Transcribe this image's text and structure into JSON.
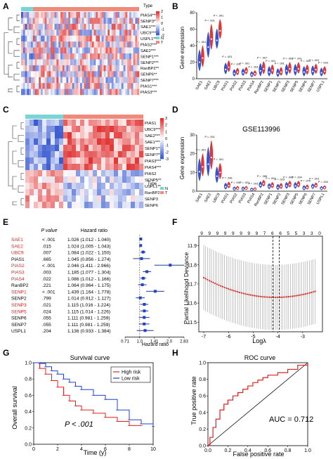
{
  "panels": {
    "A": {
      "letter": "A",
      "legend_title": "Type",
      "genes": [
        "PIAS4****",
        "SENP3***",
        "SAE1***",
        "UBC9***",
        "USPL1**",
        "PIAS2***",
        "SAE2***",
        "SENP1***",
        "SENP2***",
        "RanBP2**",
        "SENP6**",
        "SENP7***",
        "PIAS1***",
        "PIAS3***"
      ],
      "type_labels": [
        "N",
        "T"
      ],
      "scale": [
        "2",
        "1",
        "0",
        "-1",
        "-2"
      ]
    },
    "B": {
      "letter": "B",
      "ylabel": "Gene expression",
      "ylim": [
        0,
        80
      ],
      "yticks": [
        "0",
        "20",
        "40",
        "60",
        "80"
      ],
      "genes": [
        "SAE1",
        "SAE2",
        "UBC9",
        "PIAS1",
        "PIAS2",
        "PIAS3",
        "PIAS4",
        "RanBP2",
        "SENP1",
        "SENP2",
        "SENP3",
        "SENP5",
        "SENP6",
        "SENP7",
        "USPL1"
      ],
      "pvals": [
        "P = .001",
        "P < .001",
        "P < .001",
        "P = .001",
        "P < .001",
        "P = .001",
        "P < .001",
        "P = .007",
        "P < .001",
        "P = .001",
        "P < .001",
        "P = .001",
        "P = .001",
        "P < .001",
        "P = .003"
      ]
    },
    "C": {
      "letter": "C",
      "legend_title": "Type",
      "genes": [
        "PIAS1",
        "UBC9***",
        "SAE2***",
        "SAE1***",
        "SENP1***",
        "SENP7***",
        "PIAS3***",
        "PIAS4***",
        "PIAS2",
        "SENP5**",
        "USPL1**",
        "RanBP2",
        "SENP3",
        "SENP6"
      ],
      "type_labels": [
        "N",
        "T"
      ],
      "scale": [
        "3",
        "2",
        "1",
        "0",
        "-1",
        "-2",
        "-3"
      ]
    },
    "D": {
      "letter": "D",
      "title": "GSE113996",
      "ylabel": "Gene expression",
      "ylim": [
        0,
        30
      ],
      "yticks": [
        "0",
        "10",
        "20",
        "30"
      ],
      "genes": [
        "SAE1",
        "SAE2",
        "UBC9",
        "PIAS1",
        "PIAS2",
        "PIAS3",
        "PIAS4",
        "RanBP2",
        "SENP1",
        "SENP2",
        "SENP3",
        "SENP5",
        "SENP6",
        "SENP7",
        "USPL1"
      ],
      "pvals": [
        "P < .001",
        "P < .001",
        "P < .001",
        "P = .296",
        "P = .001",
        "P = .021",
        "P = .001",
        "P = .285",
        "P < .001",
        "P = .023",
        "P = .005",
        "P = .004",
        "P = .076",
        "P = .001",
        "P = .004"
      ]
    },
    "E": {
      "letter": "E",
      "col_pvalue": "P value",
      "col_hr": "Hazard ratio",
      "xlabel": "Hazard ratio",
      "xticks": [
        "0.71",
        "1.0",
        "1.41",
        "2.0",
        "2.83"
      ],
      "rows": [
        {
          "gene": "SAE1",
          "p": "< .001",
          "hr": "1.026 (1.012 - 1.040)",
          "est": 1.026,
          "lo": 1.012,
          "hi": 1.04,
          "sig": true
        },
        {
          "gene": "SAE2",
          "p": ".015",
          "hr": "1.024 (1.005 - 1.043)",
          "est": 1.024,
          "lo": 1.005,
          "hi": 1.043,
          "sig": true
        },
        {
          "gene": "UBC9",
          "p": ".007",
          "hr": "1.084 (1.022 - 1.150)",
          "est": 1.084,
          "lo": 1.022,
          "hi": 1.15,
          "sig": true
        },
        {
          "gene": "PIAS1",
          "p": ".665",
          "hr": "1.045 (0.856 - 1.274)",
          "est": 1.045,
          "lo": 0.856,
          "hi": 1.274,
          "sig": false
        },
        {
          "gene": "PIAS2",
          "p": "< .001",
          "hr": "2.046 (1.411 - 2.966)",
          "est": 2.046,
          "lo": 1.411,
          "hi": 2.966,
          "sig": true
        },
        {
          "gene": "PIAS3",
          "p": ".003",
          "hr": "1.185 (1.077 - 1.304)",
          "est": 1.185,
          "lo": 1.077,
          "hi": 1.304,
          "sig": true
        },
        {
          "gene": "PIAS4",
          "p": ".022",
          "hr": "1.086 (1.012 - 1.166)",
          "est": 1.086,
          "lo": 1.012,
          "hi": 1.166,
          "sig": true
        },
        {
          "gene": "RanBP2",
          "p": ".221",
          "hr": "1.064 (0.964 - 1.175)",
          "est": 1.064,
          "lo": 0.964,
          "hi": 1.175,
          "sig": false
        },
        {
          "gene": "SENP1",
          "p": "< .001",
          "hr": "1.439 (1.164 - 1.778)",
          "est": 1.439,
          "lo": 1.164,
          "hi": 1.778,
          "sig": true
        },
        {
          "gene": "SENP2",
          "p": ".799",
          "hr": "1.014 (0.912 - 1.127)",
          "est": 1.014,
          "lo": 0.912,
          "hi": 1.127,
          "sig": false
        },
        {
          "gene": "SENP3",
          "p": ".021",
          "hr": "1.115 (1.016 - 1.224)",
          "est": 1.115,
          "lo": 1.016,
          "hi": 1.224,
          "sig": true
        },
        {
          "gene": "SENP5",
          "p": ".024",
          "hr": "1.115 (1.014 - 1.226)",
          "est": 1.115,
          "lo": 1.014,
          "hi": 1.226,
          "sig": true
        },
        {
          "gene": "SENP6",
          "p": ".055",
          "hr": "1.111 (0.981 - 1.259)",
          "est": 1.111,
          "lo": 0.981,
          "hi": 1.259,
          "sig": false
        },
        {
          "gene": "SENP7",
          "p": ".055",
          "hr": "1.111 (0.981 - 1.259)",
          "est": 1.111,
          "lo": 0.981,
          "hi": 1.259,
          "sig": false
        },
        {
          "gene": "USPL1",
          "p": ".204",
          "hr": "1.136 (0.933 - 1.384)",
          "est": 1.136,
          "lo": 0.933,
          "hi": 1.384,
          "sig": false
        }
      ]
    },
    "F": {
      "letter": "F",
      "ylabel": "Partial Likelihood Deviance",
      "xlabel": "Logλ",
      "yticks": [
        "11.5",
        "11.6",
        "11.7",
        "11.8",
        "11.9"
      ],
      "xticks": [
        "-7",
        "-6",
        "-5",
        "-4",
        "-3"
      ],
      "top_counts": [
        "9",
        "9",
        "9",
        "9",
        "9",
        "9",
        "9",
        "9",
        "7",
        "6",
        "6",
        "5",
        "5",
        "3",
        "3",
        "0"
      ]
    },
    "G": {
      "letter": "G",
      "title": "Survival curve",
      "ylabel": "Overall survival",
      "xlabel": "Time (y)",
      "yticks": [
        "0.0",
        "0.2",
        "0.4",
        "0.6",
        "0.8",
        "1.0"
      ],
      "xticks": [
        "0",
        "2",
        "4",
        "6",
        "8",
        "10"
      ],
      "legend": [
        "High risk",
        "Low risk"
      ],
      "pvalue": "P < .001"
    },
    "H": {
      "letter": "H",
      "title": "ROC curve",
      "ylabel": "True positive rate",
      "xlabel": "False positive rate",
      "ticks": [
        "0.0",
        "0.2",
        "0.4",
        "0.6",
        "0.8",
        "1.0"
      ],
      "auc": "AUC = 0.712"
    }
  },
  "colors": {
    "red": "#e02020",
    "blue": "#2040d0",
    "navy": "#1f3b8c",
    "heat_low": "#3a5bd0",
    "heat_high": "#e03030",
    "normal": "#79d6d6",
    "tumor": "#f08a7a",
    "sig_label": "#e02020"
  },
  "chart_data": [
    {
      "type": "line",
      "title": "Survival curve",
      "xlabel": "Time (y)",
      "ylabel": "Overall survival",
      "xlim": [
        0,
        10
      ],
      "ylim": [
        0,
        1
      ],
      "series": [
        {
          "name": "High risk",
          "x": [
            0,
            0.5,
            1,
            1.5,
            2,
            2.5,
            3,
            3.5,
            4,
            5,
            6,
            7,
            8,
            9
          ],
          "y": [
            1.0,
            0.93,
            0.86,
            0.78,
            0.7,
            0.6,
            0.53,
            0.47,
            0.42,
            0.38,
            0.33,
            0.28,
            0.23,
            0.23
          ]
        },
        {
          "name": "Low risk",
          "x": [
            0,
            0.5,
            1,
            1.5,
            2,
            2.5,
            3,
            3.5,
            4,
            5,
            6,
            7,
            8,
            9,
            10
          ],
          "y": [
            1.0,
            0.99,
            0.95,
            0.9,
            0.86,
            0.8,
            0.76,
            0.71,
            0.67,
            0.6,
            0.55,
            0.42,
            0.3,
            0.25,
            0.22
          ]
        }
      ]
    },
    {
      "type": "line",
      "title": "ROC curve",
      "xlabel": "False positive rate",
      "ylabel": "True positive rate",
      "xlim": [
        0,
        1
      ],
      "ylim": [
        0,
        1
      ],
      "series": [
        {
          "name": "",
          "x": [
            0,
            0.02,
            0.05,
            0.08,
            0.12,
            0.16,
            0.2,
            0.25,
            0.3,
            0.35,
            0.4,
            0.45,
            0.5,
            0.55,
            0.6,
            0.7,
            0.8,
            0.9,
            1.0
          ],
          "y": [
            0,
            0.1,
            0.22,
            0.32,
            0.43,
            0.5,
            0.55,
            0.6,
            0.64,
            0.68,
            0.72,
            0.76,
            0.79,
            0.82,
            0.85,
            0.88,
            0.92,
            0.97,
            1.0
          ]
        }
      ]
    },
    {
      "type": "scatter",
      "title": "",
      "xlabel": "Logλ",
      "ylabel": "Partial Likelihood Deviance",
      "xlim": [
        -7.2,
        -2.2
      ],
      "ylim": [
        11.45,
        11.95
      ],
      "series": [
        {
          "name": "",
          "x": [
            -7,
            -6.5,
            -6,
            -5.5,
            -5,
            -4.5,
            -4.2,
            -4,
            -3.5,
            -3,
            -2.5
          ],
          "y": [
            11.74,
            11.73,
            11.72,
            11.7,
            11.67,
            11.64,
            11.63,
            11.63,
            11.65,
            11.69,
            11.72
          ]
        }
      ]
    },
    {
      "type": "scatter",
      "title": "",
      "xlabel": "Hazard ratio",
      "ylabel": "",
      "xlim": [
        0.71,
        2.83
      ],
      "ylim": [],
      "series": [
        {
          "name": "",
          "x": [
            "SAE1",
            "SAE2",
            "UBC9",
            "PIAS1",
            "PIAS2",
            "PIAS3",
            "PIAS4",
            "RanBP2",
            "SENP1",
            "SENP2",
            "SENP3",
            "SENP5",
            "SENP6",
            "SENP7",
            "USPL1"
          ],
          "y": [
            1.026,
            1.024,
            1.084,
            1.045,
            2.046,
            1.185,
            1.086,
            1.064,
            1.439,
            1.014,
            1.115,
            1.115,
            1.111,
            1.111,
            1.136
          ]
        }
      ]
    }
  ]
}
